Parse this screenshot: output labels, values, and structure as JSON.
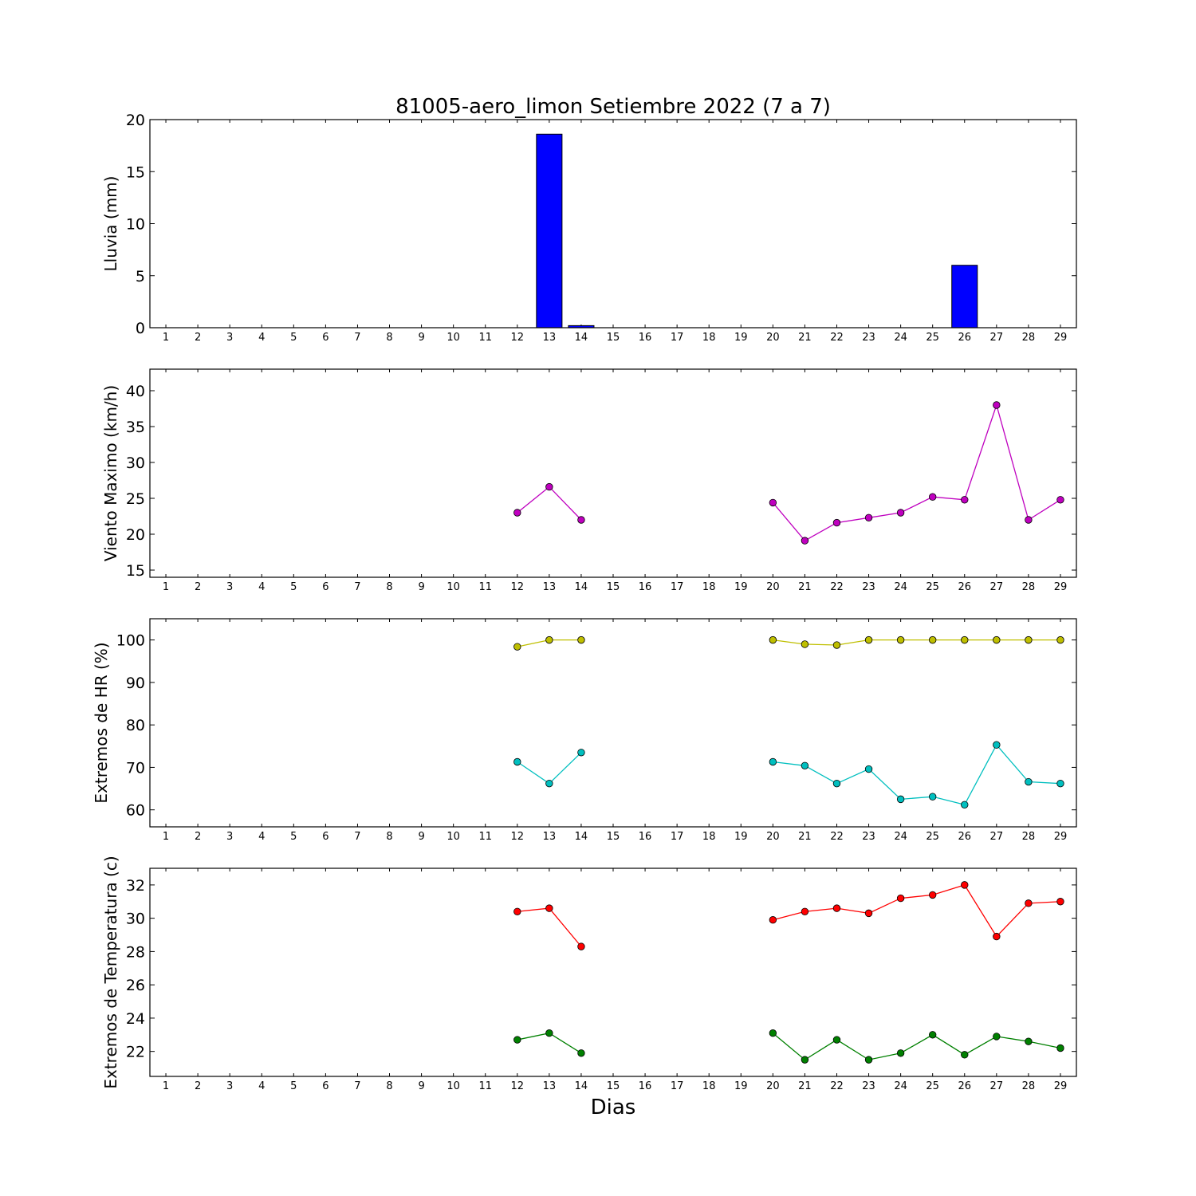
{
  "chart_data": {
    "title": "81005-aero_limon Setiembre 2022  (7 a 7)",
    "xlabel": "Dias",
    "x_ticks": [
      1,
      2,
      3,
      4,
      5,
      6,
      7,
      8,
      9,
      10,
      11,
      12,
      13,
      14,
      15,
      16,
      17,
      18,
      19,
      20,
      21,
      22,
      23,
      24,
      25,
      26,
      27,
      28,
      29
    ],
    "panels": [
      {
        "type": "bar",
        "ylabel": "Lluvia (mm)",
        "ylim": [
          0,
          20
        ],
        "yticks": [
          0,
          5,
          10,
          15,
          20
        ],
        "series": [
          {
            "color": "#0000ff",
            "x": [
              12,
              13,
              14,
              15,
              16,
              17,
              18,
              19,
              20,
              21,
              22,
              23,
              24,
              25,
              26,
              27,
              28,
              29
            ],
            "values": [
              0,
              18.6,
              0.2,
              0,
              0,
              0,
              0,
              0,
              0,
              0,
              0,
              0,
              0,
              0,
              6.0,
              0,
              0,
              0
            ]
          }
        ]
      },
      {
        "type": "line",
        "ylabel": "Viento Maximo (km/h)",
        "ylim": [
          14,
          43
        ],
        "yticks": [
          15,
          20,
          25,
          30,
          35,
          40
        ],
        "series": [
          {
            "color": "#bf00bf",
            "x": [
              12,
              13,
              14,
              15,
              16,
              17,
              18,
              19,
              20,
              21,
              22,
              23,
              24,
              25,
              26,
              27,
              28,
              29
            ],
            "values": [
              23.0,
              26.6,
              22.0,
              null,
              null,
              null,
              null,
              null,
              24.4,
              19.1,
              21.6,
              22.3,
              23.0,
              25.2,
              24.8,
              38.0,
              22.0,
              24.8
            ]
          }
        ]
      },
      {
        "type": "line",
        "ylabel": "Extremos de HR (%)",
        "ylim": [
          56,
          105
        ],
        "yticks": [
          60,
          70,
          80,
          90,
          100
        ],
        "series": [
          {
            "color": "#bfbf00",
            "x": [
              12,
              13,
              14,
              15,
              16,
              17,
              18,
              19,
              20,
              21,
              22,
              23,
              24,
              25,
              26,
              27,
              28,
              29
            ],
            "values": [
              98.4,
              100,
              100,
              null,
              null,
              null,
              null,
              null,
              100,
              99.0,
              98.8,
              100,
              100,
              100,
              100,
              100,
              100,
              100
            ]
          },
          {
            "color": "#00bfbf",
            "x": [
              12,
              13,
              14,
              15,
              16,
              17,
              18,
              19,
              20,
              21,
              22,
              23,
              24,
              25,
              26,
              27,
              28,
              29
            ],
            "values": [
              71.3,
              66.2,
              73.5,
              null,
              null,
              null,
              null,
              null,
              71.3,
              70.4,
              66.2,
              69.6,
              62.5,
              63.1,
              61.2,
              75.3,
              66.6,
              66.2
            ]
          }
        ]
      },
      {
        "type": "line",
        "ylabel": "Extremos de Temperatura (c)",
        "ylim": [
          20.5,
          33
        ],
        "yticks": [
          22,
          24,
          26,
          28,
          30,
          32
        ],
        "series": [
          {
            "color": "#ff0000",
            "x": [
              12,
              13,
              14,
              15,
              16,
              17,
              18,
              19,
              20,
              21,
              22,
              23,
              24,
              25,
              26,
              27,
              28,
              29
            ],
            "values": [
              30.4,
              30.6,
              28.3,
              null,
              null,
              null,
              null,
              null,
              29.9,
              30.4,
              30.6,
              30.3,
              31.2,
              31.4,
              32.0,
              28.9,
              30.9,
              31.0
            ]
          },
          {
            "color": "#008000",
            "x": [
              12,
              13,
              14,
              15,
              16,
              17,
              18,
              19,
              20,
              21,
              22,
              23,
              24,
              25,
              26,
              27,
              28,
              29
            ],
            "values": [
              22.7,
              23.1,
              21.9,
              null,
              null,
              null,
              null,
              null,
              23.1,
              21.5,
              22.7,
              21.5,
              21.9,
              23.0,
              21.8,
              22.9,
              22.6,
              22.2
            ]
          }
        ]
      }
    ]
  }
}
